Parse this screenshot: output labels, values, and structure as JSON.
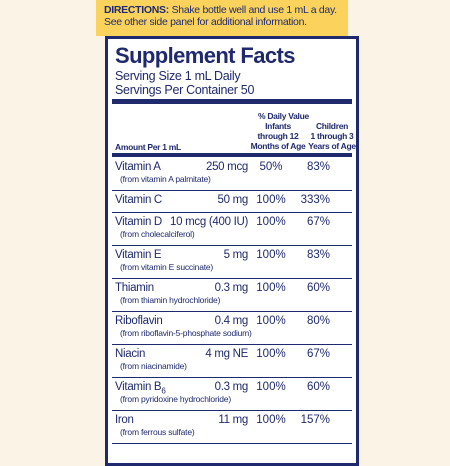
{
  "directions": {
    "label": "DIRECTIONS:",
    "line1": "Shake bottle well and use 1 mL a day.",
    "line2": "See other side panel for additional information."
  },
  "facts": {
    "title": "Supplement Facts",
    "serving_size": "Serving Size 1 mL Daily",
    "servings": "Servings Per Container 50",
    "dv_header": "% Daily Value",
    "infants_header": [
      "Infants",
      "through 12",
      "Months of Age"
    ],
    "children_header": [
      "Children",
      "1 through 3",
      "Years of Age"
    ],
    "amount_header": "Amount Per 1 mL",
    "rows": [
      {
        "name": "Vitamin A",
        "source": "(from vitamin A palmitate)",
        "amount": "250 mcg",
        "infants": "50%",
        "children": "83%"
      },
      {
        "name": "Vitamin C",
        "amount": "50 mg",
        "infants": "100%",
        "children": "333%"
      },
      {
        "name": "Vitamin D",
        "source": "(from cholecalciferol)",
        "amount": "10 mcg (400 IU)",
        "infants": "100%",
        "children": "67%"
      },
      {
        "name": "Vitamin E",
        "source": "(from vitamin E succinate)",
        "amount": "5 mg",
        "infants": "100%",
        "children": "83%"
      },
      {
        "name": "Thiamin",
        "source": "(from thiamin hydrochloride)",
        "amount": "0.3 mg",
        "infants": "100%",
        "children": "60%"
      },
      {
        "name": "Riboflavin",
        "source": "(from riboflavin-5-phosphate sodium)",
        "amount": "0.4 mg",
        "infants": "100%",
        "children": "80%"
      },
      {
        "name": "Niacin",
        "source": "(from niacinamide)",
        "amount": "4 mg NE",
        "infants": "100%",
        "children": "67%"
      },
      {
        "name": "Vitamin B",
        "name_sub": "6",
        "source": "(from pyridoxine hydrochloride)",
        "amount": "0.3 mg",
        "infants": "100%",
        "children": "60%"
      },
      {
        "name": "Iron",
        "source": "(from ferrous sulfate)",
        "amount": "11 mg",
        "infants": "100%",
        "children": "157%"
      }
    ]
  }
}
